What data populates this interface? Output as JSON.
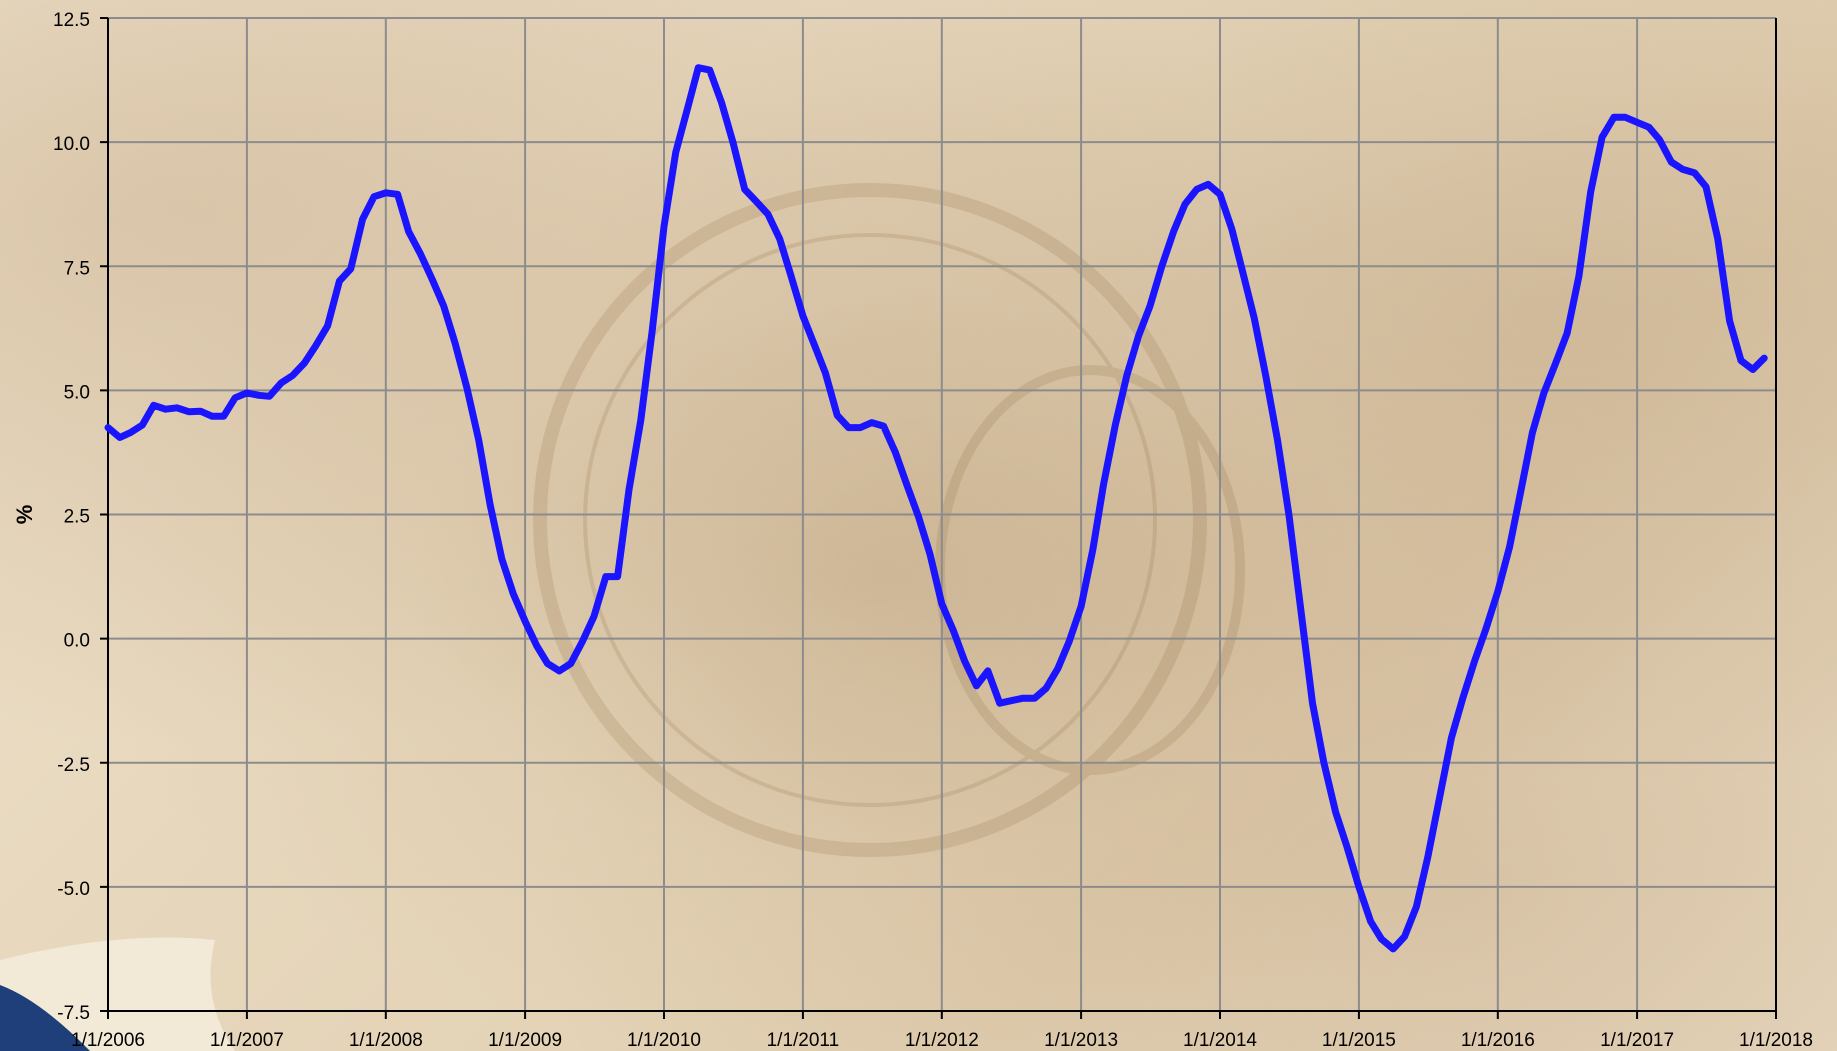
{
  "chart_data": {
    "type": "line",
    "title": "",
    "xlabel": "",
    "ylabel": "%",
    "ylim": [
      -7.5,
      12.5
    ],
    "xlim": [
      "2006-01-01",
      "2018-01-01"
    ],
    "grid": true,
    "y_ticks": [
      "12.5",
      "10.0",
      "7.5",
      "5.0",
      "2.5",
      "0.0",
      "-2.5",
      "-5.0",
      "-7.5"
    ],
    "x_ticks": [
      "1/1/2006",
      "1/1/2007",
      "1/1/2008",
      "1/1/2009",
      "1/1/2010",
      "1/1/2011",
      "1/1/2012",
      "1/1/2013",
      "1/1/2014",
      "1/1/2015",
      "1/1/2016",
      "1/1/2017",
      "1/1/2018"
    ],
    "series": [
      {
        "color": "#1a14ff",
        "points": [
          [
            "2006-01-01",
            4.25
          ],
          [
            "2006-02-01",
            4.05
          ],
          [
            "2006-03-01",
            4.15
          ],
          [
            "2006-04-01",
            4.3
          ],
          [
            "2006-05-01",
            4.7
          ],
          [
            "2006-06-01",
            4.62
          ],
          [
            "2006-07-01",
            4.65
          ],
          [
            "2006-08-01",
            4.57
          ],
          [
            "2006-09-01",
            4.58
          ],
          [
            "2006-10-01",
            4.48
          ],
          [
            "2006-11-01",
            4.48
          ],
          [
            "2006-12-01",
            4.85
          ],
          [
            "2007-01-01",
            4.95
          ],
          [
            "2007-02-01",
            4.9
          ],
          [
            "2007-03-01",
            4.88
          ],
          [
            "2007-04-01",
            5.15
          ],
          [
            "2007-05-01",
            5.3
          ],
          [
            "2007-06-01",
            5.55
          ],
          [
            "2007-07-01",
            5.9
          ],
          [
            "2007-08-01",
            6.3
          ],
          [
            "2007-09-01",
            7.2
          ],
          [
            "2007-10-01",
            7.45
          ],
          [
            "2007-11-01",
            8.45
          ],
          [
            "2007-12-01",
            8.9
          ],
          [
            "2008-01-01",
            8.98
          ],
          [
            "2008-02-01",
            8.95
          ],
          [
            "2008-03-01",
            8.2
          ],
          [
            "2008-04-01",
            7.75
          ],
          [
            "2008-05-01",
            7.25
          ],
          [
            "2008-06-01",
            6.7
          ],
          [
            "2008-07-01",
            5.95
          ],
          [
            "2008-08-01",
            5.05
          ],
          [
            "2008-09-01",
            4.0
          ],
          [
            "2008-10-01",
            2.7
          ],
          [
            "2008-11-01",
            1.6
          ],
          [
            "2008-12-01",
            0.9
          ],
          [
            "2009-01-01",
            0.35
          ],
          [
            "2009-02-01",
            -0.15
          ],
          [
            "2009-03-01",
            -0.5
          ],
          [
            "2009-04-01",
            -0.65
          ],
          [
            "2009-05-01",
            -0.5
          ],
          [
            "2009-06-01",
            -0.05
          ],
          [
            "2009-07-01",
            0.45
          ],
          [
            "2009-08-01",
            1.25
          ],
          [
            "2009-09-01",
            1.25
          ],
          [
            "2009-10-01",
            3.0
          ],
          [
            "2009-11-01",
            4.4
          ],
          [
            "2009-12-01",
            6.2
          ],
          [
            "2010-01-01",
            8.3
          ],
          [
            "2010-02-01",
            9.8
          ],
          [
            "2010-03-01",
            10.6
          ],
          [
            "2010-04-01",
            11.5
          ],
          [
            "2010-05-01",
            11.45
          ],
          [
            "2010-06-01",
            10.8
          ],
          [
            "2010-07-01",
            10.0
          ],
          [
            "2010-08-01",
            9.05
          ],
          [
            "2010-09-01",
            8.8
          ],
          [
            "2010-10-01",
            8.55
          ],
          [
            "2010-11-01",
            8.05
          ],
          [
            "2010-12-01",
            7.3
          ],
          [
            "2011-01-01",
            6.5
          ],
          [
            "2011-02-01",
            5.9
          ],
          [
            "2011-03-01",
            5.35
          ],
          [
            "2011-04-01",
            4.5
          ],
          [
            "2011-05-01",
            4.25
          ],
          [
            "2011-06-01",
            4.25
          ],
          [
            "2011-07-01",
            4.35
          ],
          [
            "2011-08-01",
            4.28
          ],
          [
            "2011-09-01",
            3.75
          ],
          [
            "2011-10-01",
            3.1
          ],
          [
            "2011-11-01",
            2.45
          ],
          [
            "2011-12-01",
            1.7
          ],
          [
            "2012-01-01",
            0.7
          ],
          [
            "2012-02-01",
            0.15
          ],
          [
            "2012-03-01",
            -0.45
          ],
          [
            "2012-04-01",
            -0.95
          ],
          [
            "2012-05-01",
            -0.65
          ],
          [
            "2012-06-01",
            -1.3
          ],
          [
            "2012-07-01",
            -1.25
          ],
          [
            "2012-08-01",
            -1.2
          ],
          [
            "2012-09-01",
            -1.2
          ],
          [
            "2012-10-01",
            -1.0
          ],
          [
            "2012-11-01",
            -0.6
          ],
          [
            "2012-12-01",
            -0.05
          ],
          [
            "2013-01-01",
            0.65
          ],
          [
            "2013-02-01",
            1.8
          ],
          [
            "2013-03-01",
            3.1
          ],
          [
            "2013-04-01",
            4.3
          ],
          [
            "2013-05-01",
            5.3
          ],
          [
            "2013-06-01",
            6.1
          ],
          [
            "2013-07-01",
            6.7
          ],
          [
            "2013-08-01",
            7.5
          ],
          [
            "2013-09-01",
            8.2
          ],
          [
            "2013-10-01",
            8.75
          ],
          [
            "2013-11-01",
            9.05
          ],
          [
            "2013-12-01",
            9.15
          ],
          [
            "2014-01-01",
            8.95
          ],
          [
            "2014-02-01",
            8.25
          ],
          [
            "2014-03-01",
            7.4
          ],
          [
            "2014-04-01",
            6.45
          ],
          [
            "2014-05-01",
            5.3
          ],
          [
            "2014-06-01",
            4.0
          ],
          [
            "2014-07-01",
            2.5
          ],
          [
            "2014-08-01",
            0.6
          ],
          [
            "2014-09-01",
            -1.3
          ],
          [
            "2014-10-01",
            -2.5
          ],
          [
            "2014-11-01",
            -3.5
          ],
          [
            "2014-12-01",
            -4.2
          ],
          [
            "2015-01-01",
            -5.0
          ],
          [
            "2015-02-01",
            -5.7
          ],
          [
            "2015-03-01",
            -6.05
          ],
          [
            "2015-04-01",
            -6.25
          ],
          [
            "2015-05-01",
            -6.0
          ],
          [
            "2015-06-01",
            -5.4
          ],
          [
            "2015-07-01",
            -4.4
          ],
          [
            "2015-08-01",
            -3.2
          ],
          [
            "2015-09-01",
            -2.0
          ],
          [
            "2015-10-01",
            -1.2
          ],
          [
            "2015-11-01",
            -0.45
          ],
          [
            "2015-12-01",
            0.2
          ],
          [
            "2016-01-01",
            0.95
          ],
          [
            "2016-02-01",
            1.85
          ],
          [
            "2016-03-01",
            2.95
          ],
          [
            "2016-04-01",
            4.15
          ],
          [
            "2016-05-01",
            4.95
          ],
          [
            "2016-06-01",
            5.55
          ],
          [
            "2016-07-01",
            6.15
          ],
          [
            "2016-08-01",
            7.3
          ],
          [
            "2016-09-01",
            9.0
          ],
          [
            "2016-10-01",
            10.1
          ],
          [
            "2016-11-01",
            10.5
          ],
          [
            "2016-12-01",
            10.5
          ],
          [
            "2017-01-01",
            10.4
          ],
          [
            "2017-02-01",
            10.3
          ],
          [
            "2017-03-01",
            10.05
          ],
          [
            "2017-04-01",
            9.6
          ],
          [
            "2017-05-01",
            9.45
          ],
          [
            "2017-06-01",
            9.38
          ],
          [
            "2017-07-01",
            9.1
          ],
          [
            "2017-08-01",
            8.05
          ],
          [
            "2017-09-01",
            6.4
          ],
          [
            "2017-10-01",
            5.6
          ],
          [
            "2017-11-01",
            5.42
          ],
          [
            "2017-12-01",
            5.65
          ]
        ]
      }
    ]
  }
}
